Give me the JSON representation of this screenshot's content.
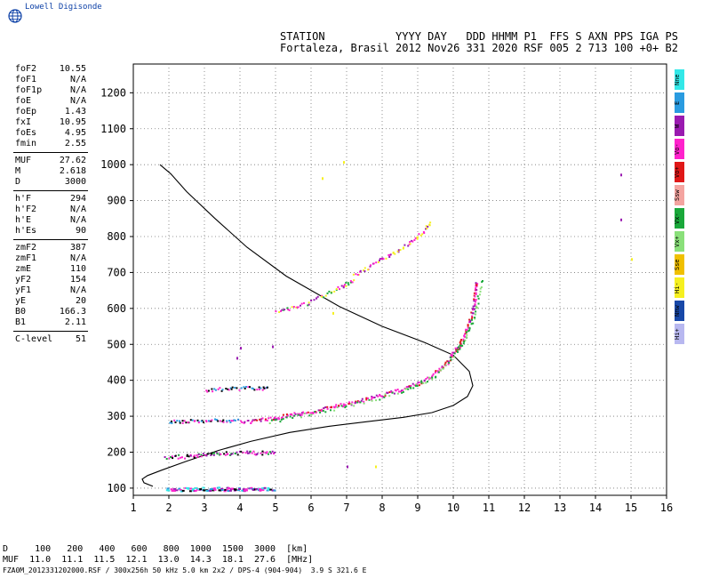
{
  "app": {
    "logo_text": "Lowell Digisonde",
    "globe_icon": "globe-icon"
  },
  "header": {
    "line1": "STATION           YYYY DAY   DDD HHMM P1  FFS S AXN PPS IGA PS",
    "line2": "Fortaleza, Brasil 2012 Nov26 331 2020 RSF 005 2 713 100 +0+ B2"
  },
  "params": {
    "group1": [
      {
        "label": "foF2",
        "value": "10.55"
      },
      {
        "label": "foF1",
        "value": "N/A"
      },
      {
        "label": "foF1p",
        "value": "N/A"
      },
      {
        "label": "foE",
        "value": "N/A"
      },
      {
        "label": "foEp",
        "value": "1.43"
      },
      {
        "label": "fxI",
        "value": "10.95"
      },
      {
        "label": "foEs",
        "value": "4.95"
      },
      {
        "label": "fmin",
        "value": "2.55"
      }
    ],
    "group2": [
      {
        "label": "MUF",
        "value": "27.62"
      },
      {
        "label": "M",
        "value": "2.618"
      },
      {
        "label": "D",
        "value": "3000"
      }
    ],
    "group3": [
      {
        "label": "h'F",
        "value": "294"
      },
      {
        "label": "h'F2",
        "value": "N/A"
      },
      {
        "label": "h'E",
        "value": "N/A"
      },
      {
        "label": "h'Es",
        "value": "90"
      }
    ],
    "group4": [
      {
        "label": "zmF2",
        "value": "387"
      },
      {
        "label": "zmF1",
        "value": "N/A"
      },
      {
        "label": "zmE",
        "value": "110"
      },
      {
        "label": "yF2",
        "value": "154"
      },
      {
        "label": "yF1",
        "value": "N/A"
      },
      {
        "label": "yE",
        "value": "20"
      },
      {
        "label": "B0",
        "value": "166.3"
      },
      {
        "label": "B1",
        "value": "2.11"
      }
    ],
    "group5": [
      {
        "label": "C-level",
        "value": "51"
      }
    ]
  },
  "legend": [
    {
      "label": "Nne",
      "color": "#33e8e8"
    },
    {
      "label": "E",
      "color": "#2a9be0"
    },
    {
      "label": "W",
      "color": "#9a1ab0"
    },
    {
      "label": "Vo-",
      "color": "#ff22cc"
    },
    {
      "label": "Vo+",
      "color": "#e01818"
    },
    {
      "label": "Ssw",
      "color": "#f4a4a0"
    },
    {
      "label": "Vx-",
      "color": "#1aa83a"
    },
    {
      "label": "Vx+",
      "color": "#8ae07a"
    },
    {
      "label": "Sse",
      "color": "#f0c000"
    },
    {
      "label": "Hi-",
      "color": "#f6f020"
    },
    {
      "label": "Nnw",
      "color": "#1848a8"
    },
    {
      "label": "Hi+",
      "color": "#b8b8f0"
    }
  ],
  "dtable": {
    "row1": "D     100   200   400   600   800  1000  1500  3000  [km]",
    "row2": "MUF  11.0  11.1  11.5  12.1  13.0  14.3  18.1  27.6  [MHz]"
  },
  "footer": "FZA0M_2012331202000.RSF / 300x256h 50 kHz 5.0 km 2x2 / DPS-4 (904-904)  3.9 S 321.6 E",
  "chart_data": {
    "type": "scatter",
    "xlim": [
      1,
      16
    ],
    "ylim": [
      80,
      1280
    ],
    "xticks": [
      1,
      2,
      3,
      4,
      5,
      6,
      7,
      8,
      9,
      10,
      11,
      12,
      13,
      14,
      15,
      16
    ],
    "yticks": [
      100,
      200,
      300,
      400,
      500,
      600,
      700,
      800,
      900,
      1000,
      1100,
      1200
    ],
    "grid": true,
    "profile": [
      [
        1.55,
        105
      ],
      [
        1.3,
        115
      ],
      [
        1.25,
        125
      ],
      [
        1.4,
        135
      ],
      [
        1.8,
        150
      ],
      [
        2.5,
        175
      ],
      [
        3.4,
        205
      ],
      [
        4.3,
        230
      ],
      [
        5.4,
        255
      ],
      [
        6.5,
        272
      ],
      [
        7.6,
        285
      ],
      [
        8.6,
        297
      ],
      [
        9.4,
        310
      ],
      [
        10.0,
        330
      ],
      [
        10.4,
        355
      ],
      [
        10.55,
        385
      ],
      [
        10.45,
        425
      ],
      [
        10.0,
        470
      ],
      [
        9.2,
        505
      ],
      [
        8.0,
        550
      ],
      [
        6.8,
        605
      ],
      [
        5.3,
        690
      ],
      [
        4.2,
        770
      ],
      [
        3.3,
        850
      ],
      [
        2.5,
        925
      ],
      [
        2.05,
        975
      ],
      [
        1.75,
        1000
      ]
    ],
    "f_trace_pink": [
      [
        4.0,
        285
      ],
      [
        4.5,
        290
      ],
      [
        5.0,
        298
      ],
      [
        5.5,
        306
      ],
      [
        6.0,
        314
      ],
      [
        6.5,
        325
      ],
      [
        7.0,
        336
      ],
      [
        7.5,
        348
      ],
      [
        8.0,
        361
      ],
      [
        8.5,
        375
      ],
      [
        9.0,
        393
      ],
      [
        9.5,
        422
      ],
      [
        9.8,
        450
      ],
      [
        10.0,
        478
      ],
      [
        10.2,
        505
      ],
      [
        10.4,
        550
      ],
      [
        10.55,
        600
      ],
      [
        10.6,
        640
      ],
      [
        10.65,
        680
      ]
    ],
    "f_trace_green": [
      [
        4.8,
        287
      ],
      [
        5.5,
        300
      ],
      [
        6.5,
        320
      ],
      [
        7.5,
        342
      ],
      [
        8.5,
        370
      ],
      [
        9.0,
        390
      ],
      [
        9.5,
        415
      ],
      [
        10.05,
        475
      ],
      [
        10.3,
        515
      ],
      [
        10.5,
        560
      ],
      [
        10.65,
        610
      ],
      [
        10.8,
        690
      ]
    ],
    "f_multi": [
      [
        5.0,
        590
      ],
      [
        5.5,
        605
      ],
      [
        6.0,
        620
      ],
      [
        6.5,
        645
      ],
      [
        6.9,
        665
      ],
      [
        7.2,
        680
      ]
    ],
    "f_high": [
      [
        7.2,
        695
      ],
      [
        7.6,
        715
      ],
      [
        8.0,
        742
      ],
      [
        8.4,
        760
      ],
      [
        8.8,
        785
      ],
      [
        9.1,
        810
      ],
      [
        9.35,
        845
      ]
    ],
    "es_100": [
      [
        1.9,
        98
      ],
      [
        2.5,
        98
      ],
      [
        3.0,
        99
      ],
      [
        3.5,
        99
      ],
      [
        4.0,
        99
      ],
      [
        4.5,
        99
      ],
      [
        4.95,
        99
      ]
    ],
    "es_190": [
      [
        1.9,
        188
      ],
      [
        2.5,
        190
      ],
      [
        3.0,
        195
      ],
      [
        3.5,
        198
      ],
      [
        4.0,
        200
      ],
      [
        4.5,
        200
      ],
      [
        5.0,
        200
      ]
    ],
    "es_280": [
      [
        2.0,
        285
      ],
      [
        2.5,
        288
      ],
      [
        3.0,
        290
      ],
      [
        3.5,
        290
      ],
      [
        4.0,
        290
      ]
    ],
    "es_380": [
      [
        3.0,
        375
      ],
      [
        3.5,
        377
      ],
      [
        4.0,
        380
      ],
      [
        4.5,
        380
      ],
      [
        4.8,
        380
      ]
    ],
    "noise_points": [
      [
        4.0,
        493
      ],
      [
        4.9,
        497
      ],
      [
        3.9,
        465
      ],
      [
        6.3,
        965
      ],
      [
        6.9,
        1010
      ],
      [
        14.7,
        975
      ],
      [
        14.7,
        850
      ],
      [
        15.0,
        740
      ],
      [
        6.6,
        590
      ],
      [
        7.0,
        163
      ],
      [
        7.8,
        163
      ]
    ]
  }
}
